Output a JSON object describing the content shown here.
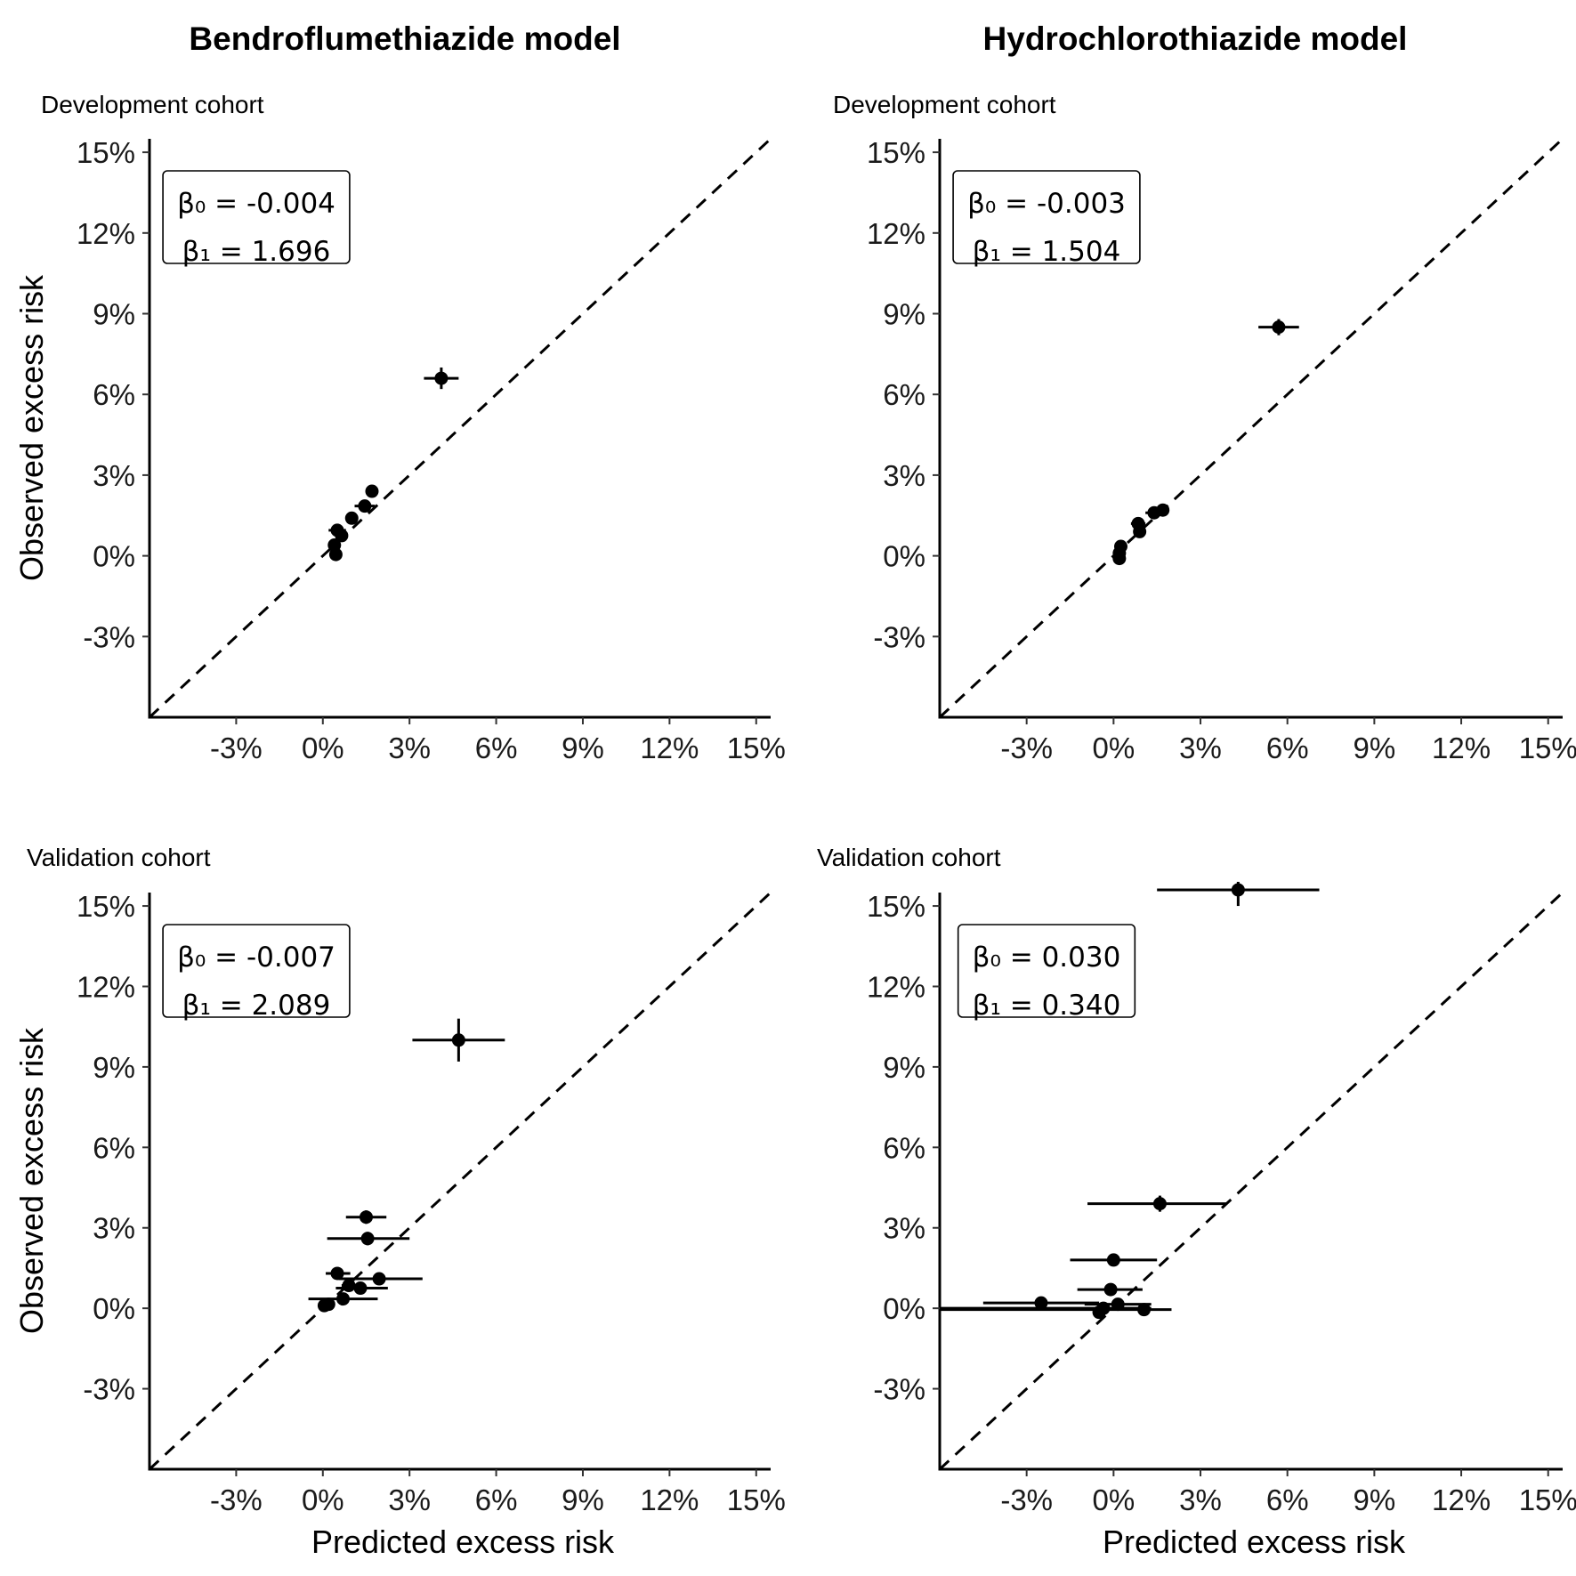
{
  "figure": {
    "column_titles": [
      "Bendroflumethiazide model",
      "Hydrochlorothiazide model"
    ],
    "panel_subtitles": [
      "Development cohort",
      "Validation cohort"
    ],
    "xlabel": "Predicted excess risk",
    "ylabel": "Observed excess risk",
    "colors": {
      "points": "#000000",
      "reference_line": "#000000",
      "axes": "#000000"
    }
  },
  "chart_data": [
    {
      "type": "scatter",
      "title": "Bendroflumethiazide model",
      "subtitle": "Development cohort",
      "xlabel": "",
      "ylabel": "Observed excess risk",
      "xlim": [
        -6,
        15.5
      ],
      "ylim": [
        -6,
        15.5
      ],
      "x_ticks": [
        "-3%",
        "0%",
        "3%",
        "6%",
        "9%",
        "12%",
        "15%"
      ],
      "y_ticks": [
        "-3%",
        "0%",
        "3%",
        "6%",
        "9%",
        "12%",
        "15%"
      ],
      "reference_line": "y = x (dashed)",
      "annotation": [
        "β₀ = -0.004",
        "β₁ = 1.696"
      ],
      "points": [
        {
          "x": 4.1,
          "y": 6.6,
          "xlo": 3.5,
          "xhi": 4.7,
          "ylo": 6.2,
          "yhi": 7.0
        },
        {
          "x": 1.7,
          "y": 2.4,
          "xlo": 1.5,
          "xhi": 1.9,
          "ylo": 2.3,
          "yhi": 2.5
        },
        {
          "x": 1.45,
          "y": 1.85,
          "xlo": 1.1,
          "xhi": 1.8,
          "ylo": 1.75,
          "yhi": 1.95
        },
        {
          "x": 1.0,
          "y": 1.4,
          "xlo": 0.85,
          "xhi": 1.15,
          "ylo": 1.3,
          "yhi": 1.5
        },
        {
          "x": 0.65,
          "y": 0.75,
          "xlo": 0.45,
          "xhi": 0.85,
          "ylo": 0.65,
          "yhi": 0.85
        },
        {
          "x": 0.5,
          "y": 0.95,
          "xlo": 0.2,
          "xhi": 0.8,
          "ylo": 0.85,
          "yhi": 1.05
        },
        {
          "x": 0.4,
          "y": 0.4,
          "xlo": 0.3,
          "xhi": 0.5,
          "ylo": 0.3,
          "yhi": 0.5
        },
        {
          "x": 0.45,
          "y": 0.05,
          "xlo": 0.35,
          "xhi": 0.55,
          "ylo": -0.05,
          "yhi": 0.15
        }
      ]
    },
    {
      "type": "scatter",
      "title": "Hydrochlorothiazide model",
      "subtitle": "Development cohort",
      "xlabel": "",
      "ylabel": "",
      "xlim": [
        -6,
        15.5
      ],
      "ylim": [
        -6,
        15.5
      ],
      "x_ticks": [
        "-3%",
        "0%",
        "3%",
        "6%",
        "9%",
        "12%",
        "15%"
      ],
      "y_ticks": [
        "-3%",
        "0%",
        "3%",
        "6%",
        "9%",
        "12%",
        "15%"
      ],
      "reference_line": "y = x (dashed)",
      "annotation": [
        "β₀ = -0.003",
        "β₁ = 1.504"
      ],
      "points": [
        {
          "x": 5.7,
          "y": 8.5,
          "xlo": 5.0,
          "xhi": 6.4,
          "ylo": 8.2,
          "yhi": 8.8
        },
        {
          "x": 1.7,
          "y": 1.7,
          "xlo": 1.55,
          "xhi": 1.85,
          "ylo": 1.6,
          "yhi": 1.8
        },
        {
          "x": 1.4,
          "y": 1.6,
          "xlo": 1.1,
          "xhi": 1.7,
          "ylo": 1.5,
          "yhi": 1.7
        },
        {
          "x": 0.85,
          "y": 1.2,
          "xlo": 0.6,
          "xhi": 1.1,
          "ylo": 1.1,
          "yhi": 1.3
        },
        {
          "x": 0.9,
          "y": 0.9,
          "xlo": 0.8,
          "xhi": 1.0,
          "ylo": 0.8,
          "yhi": 1.0
        },
        {
          "x": 0.25,
          "y": 0.35,
          "xlo": 0.1,
          "xhi": 0.4,
          "ylo": 0.25,
          "yhi": 0.45
        },
        {
          "x": 0.2,
          "y": 0.1,
          "xlo": 0.1,
          "xhi": 0.3,
          "ylo": 0.0,
          "yhi": 0.2
        },
        {
          "x": 0.2,
          "y": -0.1,
          "xlo": 0.1,
          "xhi": 0.3,
          "ylo": -0.2,
          "yhi": 0.0
        }
      ]
    },
    {
      "type": "scatter",
      "title": "",
      "subtitle": "Validation cohort",
      "xlabel": "Predicted excess risk",
      "ylabel": "Observed excess risk",
      "xlim": [
        -6,
        15.5
      ],
      "ylim": [
        -6,
        15.5
      ],
      "x_ticks": [
        "-3%",
        "0%",
        "3%",
        "6%",
        "9%",
        "12%",
        "15%"
      ],
      "y_ticks": [
        "-3%",
        "0%",
        "3%",
        "6%",
        "9%",
        "12%",
        "15%"
      ],
      "reference_line": "y = x (dashed)",
      "annotation": [
        "β₀ = -0.007",
        "β₁ = 2.089"
      ],
      "points": [
        {
          "x": 4.7,
          "y": 10.0,
          "xlo": 3.1,
          "xhi": 6.3,
          "ylo": 9.2,
          "yhi": 10.8
        },
        {
          "x": 1.5,
          "y": 3.4,
          "xlo": 0.8,
          "xhi": 2.2,
          "ylo": 3.15,
          "yhi": 3.65
        },
        {
          "x": 1.55,
          "y": 2.6,
          "xlo": 0.15,
          "xhi": 3.0,
          "ylo": 2.35,
          "yhi": 2.85
        },
        {
          "x": 0.5,
          "y": 1.3,
          "xlo": 0.1,
          "xhi": 0.95,
          "ylo": 1.2,
          "yhi": 1.4
        },
        {
          "x": 1.95,
          "y": 1.1,
          "xlo": 0.55,
          "xhi": 3.45,
          "ylo": 1.0,
          "yhi": 1.2
        },
        {
          "x": 1.3,
          "y": 0.75,
          "xlo": 0.45,
          "xhi": 2.25,
          "ylo": 0.65,
          "yhi": 0.85
        },
        {
          "x": 0.9,
          "y": 0.85,
          "xlo": 0.65,
          "xhi": 1.15,
          "ylo": 0.75,
          "yhi": 0.95
        },
        {
          "x": 0.7,
          "y": 0.35,
          "xlo": -0.5,
          "xhi": 1.9,
          "ylo": 0.25,
          "yhi": 0.45
        },
        {
          "x": 0.2,
          "y": 0.15,
          "xlo": 0.05,
          "xhi": 0.35,
          "ylo": 0.05,
          "yhi": 0.25
        },
        {
          "x": 0.05,
          "y": 0.1,
          "xlo": -0.1,
          "xhi": 0.2,
          "ylo": 0.0,
          "yhi": 0.2
        }
      ]
    },
    {
      "type": "scatter",
      "title": "",
      "subtitle": "Validation cohort",
      "xlabel": "Predicted excess risk",
      "ylabel": "",
      "xlim": [
        -6,
        15.5
      ],
      "ylim": [
        -6,
        15.5
      ],
      "x_ticks": [
        "-3%",
        "0%",
        "3%",
        "6%",
        "9%",
        "12%",
        "15%"
      ],
      "y_ticks": [
        "-3%",
        "0%",
        "3%",
        "6%",
        "9%",
        "12%",
        "15%"
      ],
      "reference_line": "y = x (dashed)",
      "annotation": [
        "β₀ = 0.030",
        "β₁ = 0.340"
      ],
      "points": [
        {
          "x": 4.3,
          "y": 15.6,
          "xlo": 1.5,
          "xhi": 7.1,
          "ylo": 15.0,
          "yhi": 15.9
        },
        {
          "x": 1.6,
          "y": 3.9,
          "xlo": -0.9,
          "xhi": 3.9,
          "ylo": 3.6,
          "yhi": 4.2
        },
        {
          "x": 0.0,
          "y": 1.8,
          "xlo": -1.5,
          "xhi": 1.5,
          "ylo": 1.7,
          "yhi": 1.9
        },
        {
          "x": -0.1,
          "y": 0.7,
          "xlo": -1.25,
          "xhi": 1.0,
          "ylo": 0.6,
          "yhi": 0.8
        },
        {
          "x": -2.5,
          "y": 0.2,
          "xlo": -4.5,
          "xhi": -0.5,
          "ylo": 0.1,
          "yhi": 0.3
        },
        {
          "x": 0.15,
          "y": 0.15,
          "xlo": -1.0,
          "xhi": 1.3,
          "ylo": 0.05,
          "yhi": 0.25
        },
        {
          "x": -0.35,
          "y": 0.0,
          "xlo": -6.0,
          "xhi": 1.3,
          "ylo": -0.1,
          "yhi": 0.1
        },
        {
          "x": 1.05,
          "y": -0.05,
          "xlo": -6.0,
          "xhi": 2.0,
          "ylo": -0.15,
          "yhi": 0.05
        },
        {
          "x": -0.5,
          "y": -0.15,
          "xlo": -0.7,
          "xhi": -0.3,
          "ylo": -0.25,
          "yhi": -0.05
        }
      ]
    }
  ]
}
